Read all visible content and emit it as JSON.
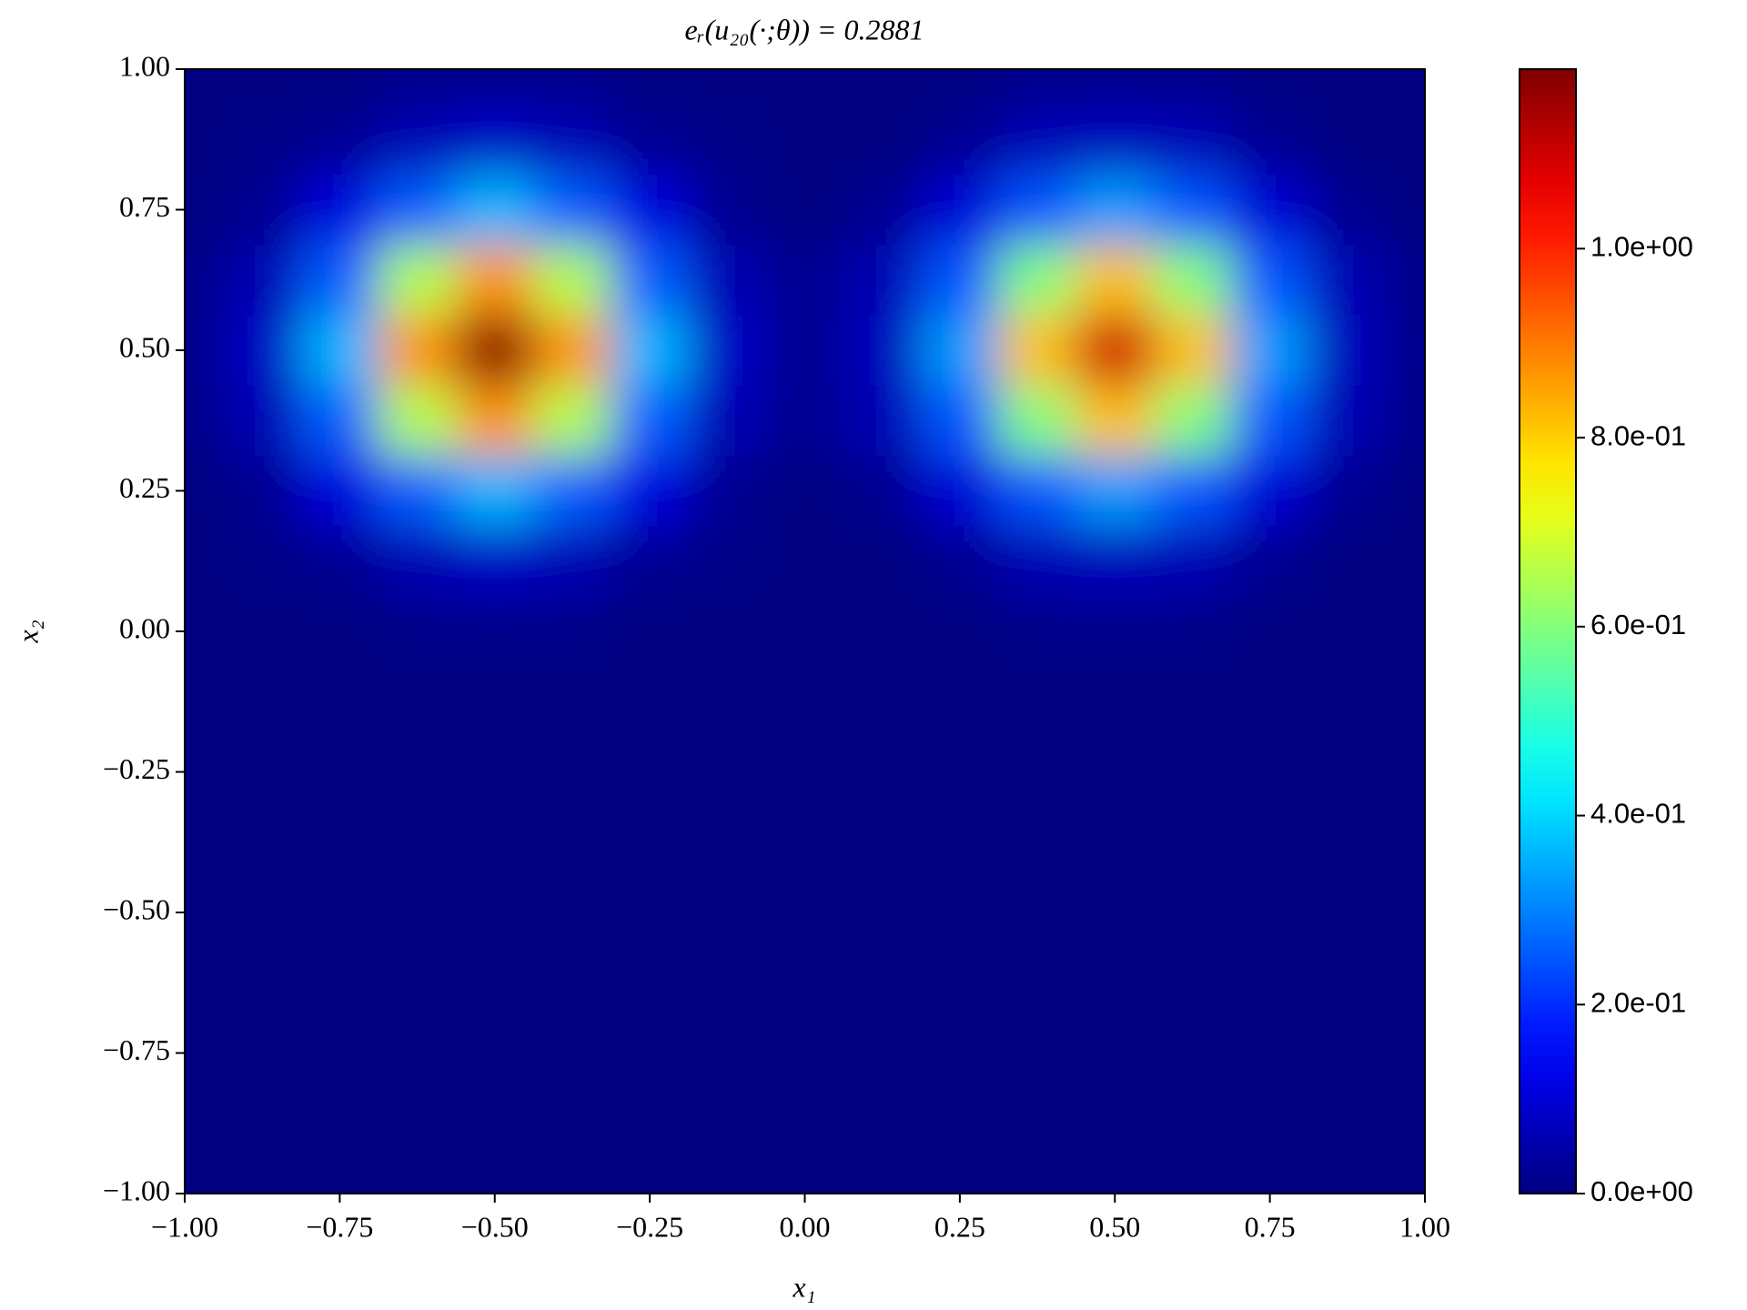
{
  "chart_data": {
    "type": "heatmap",
    "title": "eᵣ(u₂₀(·;θ)) = 0.2881",
    "xlabel": "x₁",
    "ylabel": "x₂",
    "colormap": "jet",
    "x": [
      -1,
      -0.875,
      -0.75,
      -0.625,
      -0.5,
      -0.375,
      -0.25,
      -0.125,
      0,
      0.125,
      0.25,
      0.375,
      0.5,
      0.625,
      0.75,
      0.875,
      1
    ],
    "y": [
      1,
      0.875,
      0.75,
      0.625,
      0.5,
      0.375,
      0.25,
      0.125,
      0,
      -0.125,
      -0.25,
      -0.375,
      -0.5,
      -0.625,
      -0.75,
      -0.875,
      -1
    ],
    "z": [
      [
        0,
        0,
        0,
        0.01,
        0.01,
        0.01,
        0,
        0,
        0,
        0,
        0,
        0.01,
        0.01,
        0.01,
        0,
        0,
        0
      ],
      [
        0,
        0.01,
        0.02,
        0.06,
        0.08,
        0.06,
        0.02,
        0.01,
        0,
        0,
        0.02,
        0.06,
        0.07,
        0.06,
        0.02,
        0,
        0
      ],
      [
        0,
        0.02,
        0.11,
        0.26,
        0.36,
        0.26,
        0.11,
        0.02,
        0,
        0.02,
        0.1,
        0.25,
        0.33,
        0.25,
        0.1,
        0.02,
        0
      ],
      [
        0.01,
        0.06,
        0.26,
        0.65,
        0.87,
        0.65,
        0.26,
        0.06,
        0.02,
        0.06,
        0.25,
        0.6,
        0.82,
        0.6,
        0.25,
        0.06,
        0.01
      ],
      [
        0.01,
        0.08,
        0.36,
        0.87,
        1.18,
        0.87,
        0.36,
        0.08,
        0.02,
        0.07,
        0.33,
        0.82,
        1.1,
        0.82,
        0.33,
        0.07,
        0.01
      ],
      [
        0.01,
        0.06,
        0.26,
        0.65,
        0.87,
        0.65,
        0.26,
        0.06,
        0.02,
        0.06,
        0.25,
        0.6,
        0.82,
        0.6,
        0.25,
        0.06,
        0.01
      ],
      [
        0,
        0.02,
        0.11,
        0.26,
        0.36,
        0.26,
        0.11,
        0.02,
        0,
        0.02,
        0.1,
        0.25,
        0.33,
        0.25,
        0.1,
        0.02,
        0
      ],
      [
        0,
        0.01,
        0.02,
        0.06,
        0.08,
        0.06,
        0.02,
        0.01,
        0,
        0,
        0.02,
        0.06,
        0.07,
        0.06,
        0.02,
        0,
        0
      ],
      [
        0,
        0,
        0,
        0.01,
        0.01,
        0.01,
        0,
        0,
        0,
        0,
        0,
        0.01,
        0.01,
        0.01,
        0,
        0,
        0
      ],
      [
        0,
        0,
        0,
        0,
        0,
        0,
        0,
        0,
        0,
        0,
        0,
        0,
        0,
        0,
        0,
        0,
        0
      ],
      [
        0,
        0,
        0,
        0,
        0,
        0,
        0,
        0,
        0,
        0,
        0,
        0,
        0,
        0,
        0,
        0,
        0
      ],
      [
        0,
        0,
        0,
        0,
        0,
        0,
        0,
        0,
        0,
        0,
        0,
        0,
        0,
        0,
        0,
        0,
        0
      ],
      [
        0,
        0,
        0,
        0,
        0,
        0,
        0,
        0,
        0,
        0,
        0,
        0,
        0,
        0,
        0,
        0,
        0
      ],
      [
        0,
        0,
        0,
        0,
        0,
        0,
        0,
        0,
        0,
        0,
        0,
        0,
        0,
        0,
        0,
        0,
        0
      ],
      [
        0,
        0,
        0,
        0,
        0,
        0,
        0,
        0,
        0,
        0,
        0,
        0,
        0,
        0,
        0,
        0,
        0
      ],
      [
        0,
        0,
        0,
        0,
        0,
        0,
        0,
        0,
        0,
        0,
        0,
        0,
        0,
        0,
        0,
        0,
        0
      ],
      [
        0,
        0,
        0,
        0,
        0,
        0,
        0,
        0,
        0,
        0,
        0,
        0,
        0,
        0,
        0,
        0,
        0
      ]
    ],
    "xlim": [
      -1,
      1
    ],
    "ylim": [
      -1,
      1
    ],
    "xticks": [
      {
        "value": -1,
        "label": "−1.00"
      },
      {
        "value": -0.75,
        "label": "−0.75"
      },
      {
        "value": -0.5,
        "label": "−0.50"
      },
      {
        "value": -0.25,
        "label": "−0.25"
      },
      {
        "value": 0,
        "label": "0.00"
      },
      {
        "value": 0.25,
        "label": "0.25"
      },
      {
        "value": 0.5,
        "label": "0.50"
      },
      {
        "value": 0.75,
        "label": "0.75"
      },
      {
        "value": 1,
        "label": "1.00"
      }
    ],
    "yticks": [
      {
        "value": -1,
        "label": "−1.00"
      },
      {
        "value": -0.75,
        "label": "−0.75"
      },
      {
        "value": -0.5,
        "label": "−0.50"
      },
      {
        "value": -0.25,
        "label": "−0.25"
      },
      {
        "value": 0,
        "label": "0.00"
      },
      {
        "value": 0.25,
        "label": "0.25"
      },
      {
        "value": 0.5,
        "label": "0.50"
      },
      {
        "value": 0.75,
        "label": "0.75"
      },
      {
        "value": 1,
        "label": "1.00"
      }
    ],
    "clim": [
      0,
      1.19
    ],
    "cticks": [
      {
        "value": 0,
        "label": "0.0e+00"
      },
      {
        "value": 0.2,
        "label": "2.0e-01"
      },
      {
        "value": 0.4,
        "label": "4.0e-01"
      },
      {
        "value": 0.6,
        "label": "6.0e-01"
      },
      {
        "value": 0.8,
        "label": "8.0e-01"
      },
      {
        "value": 1,
        "label": "1.0e+00"
      }
    ]
  }
}
